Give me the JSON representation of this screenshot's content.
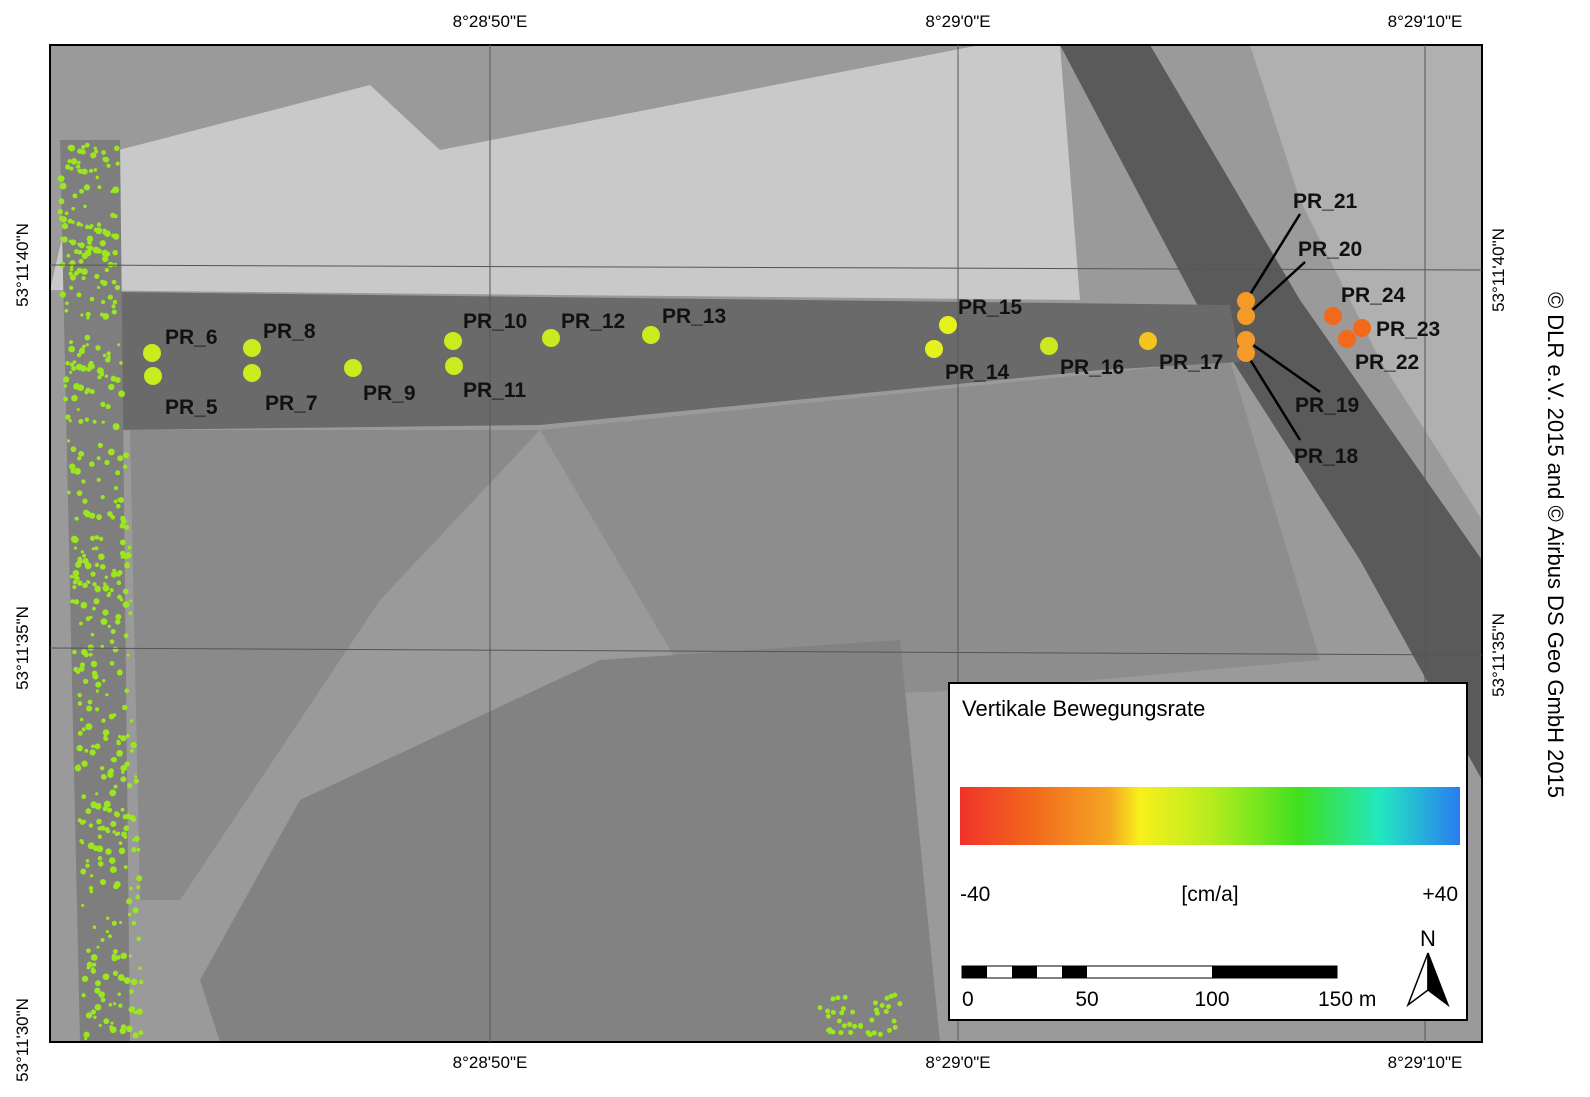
{
  "coordinates": {
    "top": [
      "8°28'50\"E",
      "8°29'0\"E",
      "8°29'10\"E"
    ],
    "bottom": [
      "8°28'50\"E",
      "8°29'0\"E",
      "8°29'10\"E"
    ],
    "left": [
      "53°11'40\"N",
      "53°11'35\"N",
      "53°11'30\"N"
    ],
    "right": [
      "53°11'40\"N",
      "53°11'35\"N"
    ]
  },
  "copyright": "© DLR e.V. 2015 and © Airbus DS Geo GmbH 2015",
  "points": [
    {
      "label": "PR_5",
      "color": "#c8ec1e"
    },
    {
      "label": "PR_6",
      "color": "#c8ec1e"
    },
    {
      "label": "PR_7",
      "color": "#c8ec1e"
    },
    {
      "label": "PR_8",
      "color": "#c8ec1e"
    },
    {
      "label": "PR_9",
      "color": "#c8ec1e"
    },
    {
      "label": "PR_10",
      "color": "#c8ec1e"
    },
    {
      "label": "PR_11",
      "color": "#c8ec1e"
    },
    {
      "label": "PR_12",
      "color": "#c8ec1e"
    },
    {
      "label": "PR_13",
      "color": "#c8ec1e"
    },
    {
      "label": "PR_14",
      "color": "#e6f21c"
    },
    {
      "label": "PR_15",
      "color": "#e6f21c"
    },
    {
      "label": "PR_16",
      "color": "#cde822"
    },
    {
      "label": "PR_17",
      "color": "#f5c41e"
    },
    {
      "label": "PR_18",
      "color": "#f39a28"
    },
    {
      "label": "PR_19",
      "color": "#f39a28"
    },
    {
      "label": "PR_20",
      "color": "#f39a28"
    },
    {
      "label": "PR_21",
      "color": "#f39a28"
    },
    {
      "label": "PR_22",
      "color": "#f2691c"
    },
    {
      "label": "PR_23",
      "color": "#f2691c"
    },
    {
      "label": "PR_24",
      "color": "#f2691c"
    }
  ],
  "legend": {
    "title": "Vertikale Bewegungsrate",
    "min_label": "-40",
    "unit": "[cm/a]",
    "max_label": "+40",
    "scale_labels": [
      "0",
      "50",
      "100",
      "150 m"
    ],
    "north": "N"
  }
}
